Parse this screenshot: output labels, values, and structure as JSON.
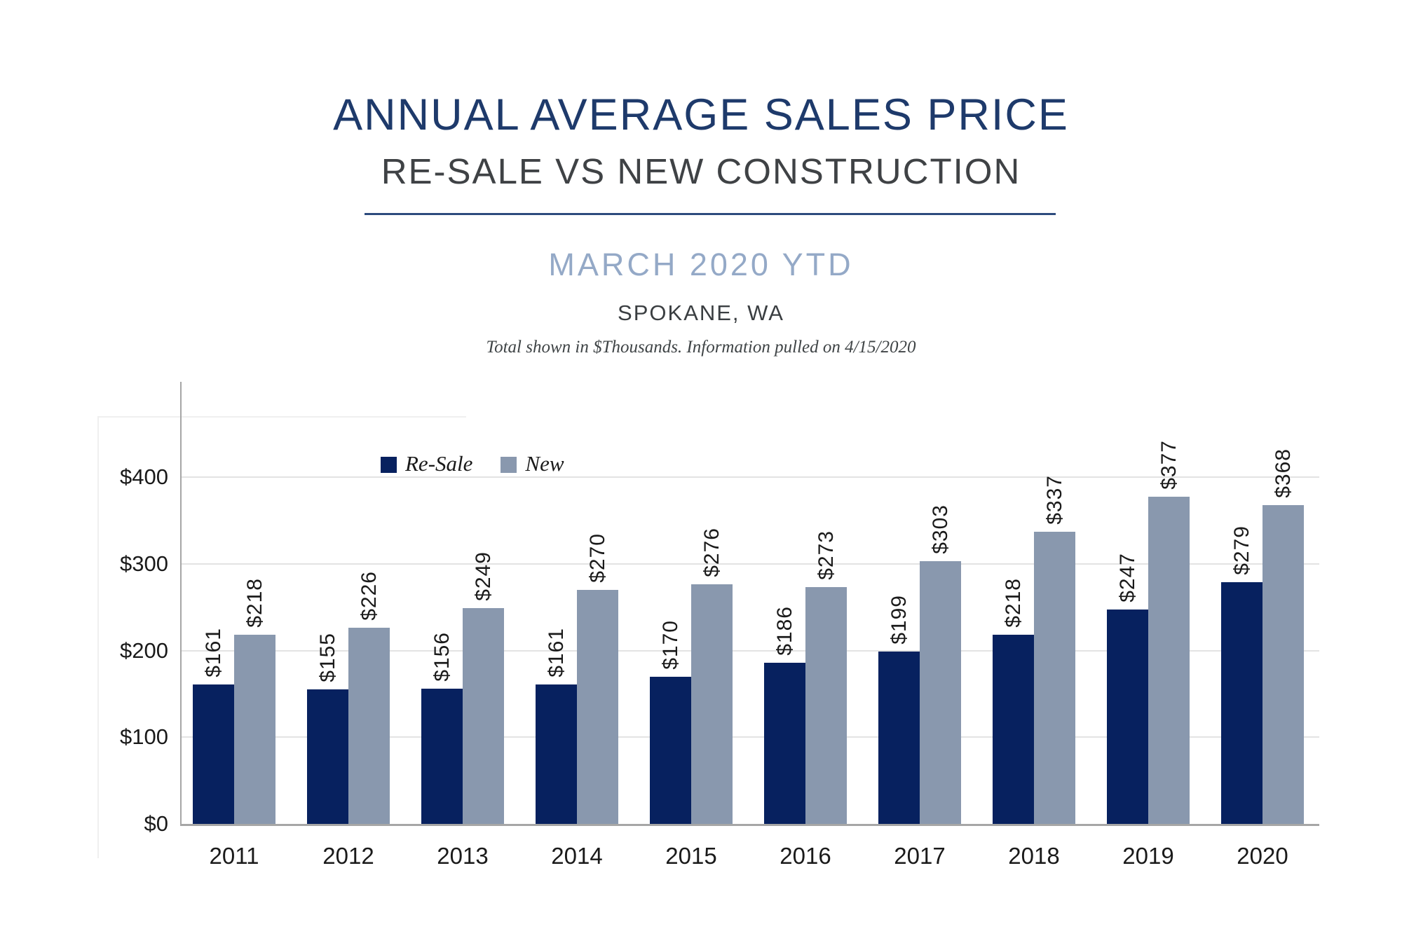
{
  "header": {
    "title": "ANNUAL AVERAGE SALES PRICE",
    "subtitle": "RE-SALE VS NEW CONSTRUCTION",
    "period": "MARCH 2020 YTD",
    "location": "SPOKANE, WA",
    "note": "Total shown in $Thousands. Information pulled on 4/15/2020"
  },
  "colors": {
    "title_navy": "#1e3a6b",
    "subtitle_gray": "#3f4245",
    "period_blue": "#94a9c7",
    "location_gray": "#3a3e41",
    "note_gray": "#3f4446",
    "divider_navy": "#2d4b7d",
    "resale_bar": "#07215f",
    "new_bar": "#8998ae",
    "gridline": "#e3e3e3",
    "axis": "#a6a6a6",
    "label_text": "#1a1a1a"
  },
  "chart_data": {
    "type": "bar",
    "title": "Annual Average Sales Price — Re-Sale vs New Construction, March 2020 YTD, Spokane WA",
    "categories": [
      "2011",
      "2012",
      "2013",
      "2014",
      "2015",
      "2016",
      "2017",
      "2018",
      "2019",
      "2020"
    ],
    "series": [
      {
        "name": "Re-Sale",
        "color": "#07215f",
        "values": [
          161,
          155,
          156,
          161,
          170,
          186,
          199,
          218,
          247,
          279
        ]
      },
      {
        "name": "New",
        "color": "#8998ae",
        "values": [
          218,
          226,
          249,
          270,
          276,
          273,
          303,
          337,
          377,
          368
        ]
      }
    ],
    "value_prefix": "$",
    "units": "$ Thousands",
    "yticks": [
      0,
      100,
      200,
      300,
      400
    ],
    "ytick_labels": [
      "$0",
      "$100",
      "$200",
      "$300",
      "$400"
    ],
    "ylim": [
      0,
      400
    ],
    "grid": true,
    "legend_position": "top-left-inside",
    "data_label_rotation": -90
  }
}
